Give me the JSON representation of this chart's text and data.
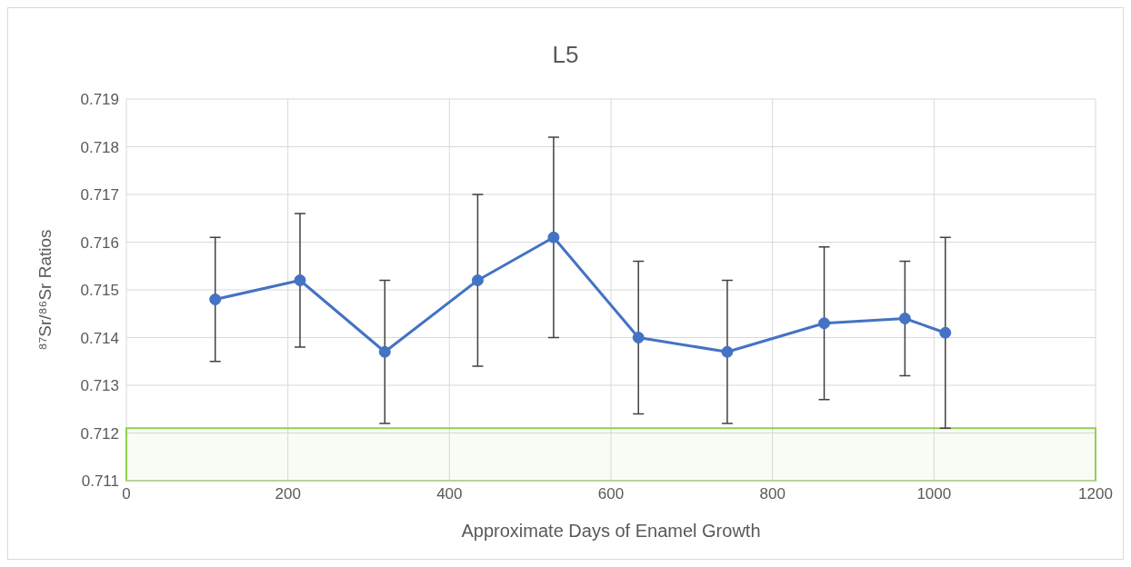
{
  "chart_data": {
    "type": "line",
    "title": "L5",
    "xlabel": "Approximate Days of Enamel Growth",
    "ylabel": "⁸⁷Sr/⁸⁶Sr Ratios",
    "x": [
      110,
      215,
      320,
      435,
      529,
      634,
      744,
      864,
      964,
      1014
    ],
    "series": [
      {
        "color": "#4472c4",
        "values": [
          0.7148,
          0.7152,
          0.7137,
          0.7152,
          0.7161,
          0.714,
          0.7137,
          0.7143,
          0.7144,
          0.7141
        ],
        "errors": [
          [
            0.7135,
            0.7161
          ],
          [
            0.7138,
            0.7166
          ],
          [
            0.7122,
            0.7152
          ],
          [
            0.7134,
            0.717
          ],
          [
            0.714,
            0.7182
          ],
          [
            0.7124,
            0.7156
          ],
          [
            0.7122,
            0.7152
          ],
          [
            0.7127,
            0.7159
          ],
          [
            0.7132,
            0.7156
          ],
          [
            0.7121,
            0.7161
          ]
        ]
      }
    ],
    "xlim": [
      0,
      1200
    ],
    "xticks": [
      0,
      200,
      400,
      600,
      800,
      1000,
      1200
    ],
    "ylim": [
      0.711,
      0.719
    ],
    "yticks": [
      0.711,
      0.712,
      0.713,
      0.714,
      0.715,
      0.716,
      0.717,
      0.718,
      0.719
    ],
    "grid": true,
    "marker": "circle",
    "line_style": "solid",
    "bands": [
      {
        "axis": "y",
        "from": 0.711,
        "to": 0.7121,
        "color": "#92d050"
      }
    ]
  }
}
